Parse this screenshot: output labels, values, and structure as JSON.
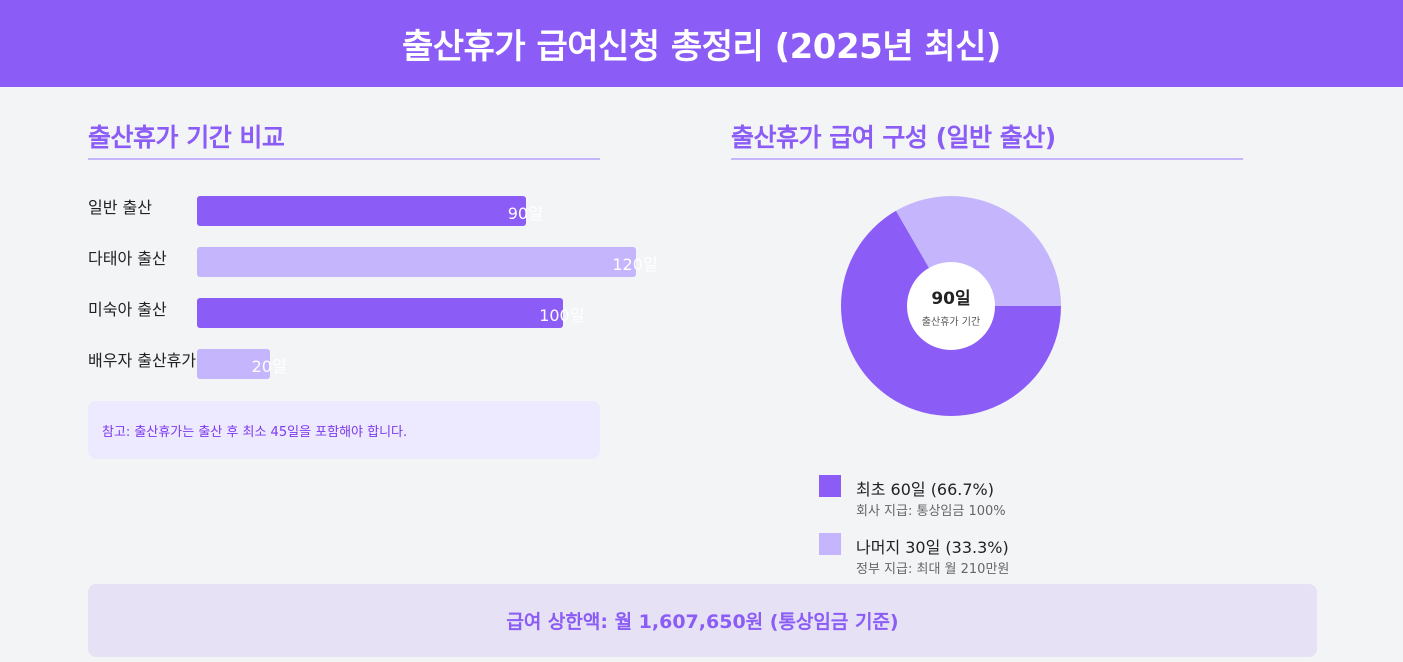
{
  "header": {
    "title": "출산휴가 급여신청 총정리 (2025년 최신)"
  },
  "colors": {
    "primary": "#8b5cf6",
    "light": "#c4b5fd"
  },
  "left_section": {
    "title": "출산휴가 기간 비교",
    "note": "참고: 출산휴가는 출산 후 최소 45일을 포함해야 합니다."
  },
  "right_section": {
    "title": "출산휴가 급여 구성 (일반 출산)",
    "center_value": "90일",
    "center_label": "출산휴가 기간",
    "legend": [
      {
        "main": "최초 60일 (66.7%)",
        "sub": "회사 지급: 통상임금 100%"
      },
      {
        "main": "나머지 30일 (33.3%)",
        "sub": "정부 지급: 최대 월 210만원"
      }
    ]
  },
  "footer": {
    "text": "급여 상한액: 월 1,607,650원 (통상임금 기준)"
  },
  "chart_data": [
    {
      "type": "bar",
      "orientation": "horizontal",
      "title": "출산휴가 기간 비교",
      "categories": [
        "일반 출산",
        "다태아 출산",
        "미숙아 출산",
        "배우자 출산휴가"
      ],
      "values": [
        90,
        120,
        100,
        20
      ],
      "value_labels": [
        "90일",
        "120일",
        "100일",
        "20일"
      ],
      "unit": "일",
      "xlim": [
        0,
        120
      ]
    },
    {
      "type": "pie",
      "title": "출산휴가 급여 구성 (일반 출산)",
      "labels": [
        "최초 60일",
        "나머지 30일"
      ],
      "values": [
        60,
        30
      ],
      "percentages": [
        66.7,
        33.3
      ]
    }
  ]
}
